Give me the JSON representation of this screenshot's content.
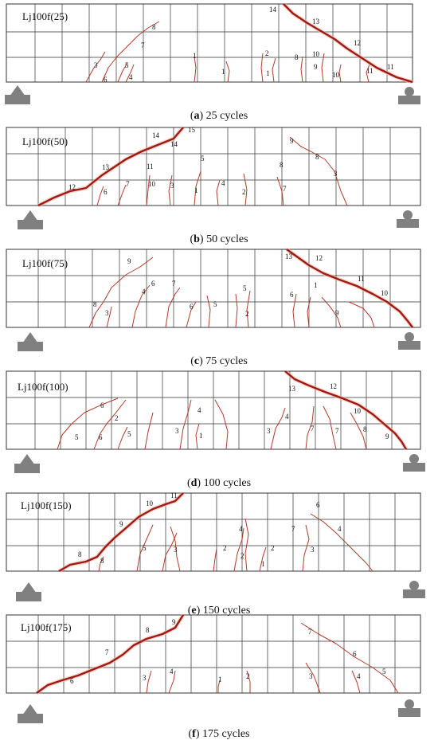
{
  "panels": [
    {
      "id": "a",
      "specimen": "Lj100f(25)",
      "caption_letter": "a",
      "caption_text": " 25 cycles",
      "crack_numbers": [
        "14",
        "13",
        "12",
        "11",
        "11",
        "10",
        "10",
        "9",
        "8",
        "8",
        "7",
        "5",
        "4",
        "3",
        "6",
        "2",
        "1",
        "1",
        "1"
      ]
    },
    {
      "id": "b",
      "specimen": "Lj100f(50)",
      "caption_letter": "b",
      "caption_text": " 50 cycles",
      "crack_numbers": [
        "15",
        "14",
        "14",
        "13",
        "12",
        "11",
        "10",
        "7",
        "6",
        "5",
        "3",
        "1",
        "4",
        "2",
        "9",
        "8",
        "3",
        "8",
        "7"
      ]
    },
    {
      "id": "c",
      "specimen": "Lj100f(75)",
      "caption_letter": "c",
      "caption_text": " 75 cycles",
      "crack_numbers": [
        "13",
        "12",
        "11",
        "10",
        "9",
        "9",
        "8",
        "7",
        "6",
        "4",
        "3",
        "6",
        "5",
        "5",
        "2",
        "1",
        "6"
      ]
    },
    {
      "id": "d",
      "specimen": "Lj100f(100)",
      "caption_letter": "d",
      "caption_text": " 100 cycles",
      "crack_numbers": [
        "13",
        "12",
        "10",
        "9",
        "8",
        "7",
        "7",
        "6",
        "6",
        "5",
        "5",
        "4",
        "4",
        "3",
        "3",
        "2",
        "1"
      ]
    },
    {
      "id": "e",
      "specimen": "Lj100f(150)",
      "caption_letter": "e",
      "caption_text": " 150 cycles",
      "crack_numbers": [
        "11",
        "10",
        "9",
        "8",
        "8",
        "7",
        "6",
        "5",
        "4",
        "4",
        "3",
        "3",
        "2",
        "2",
        "2",
        "1"
      ]
    },
    {
      "id": "f",
      "specimen": "Lj100f(175)",
      "caption_letter": "f",
      "caption_text": " 175 cycles",
      "crack_numbers": [
        "9",
        "8",
        "7",
        "7",
        "6",
        "6",
        "5",
        "4",
        "4",
        "3",
        "3",
        "2",
        "1"
      ]
    }
  ],
  "colors": {
    "grid": "#333333",
    "crack": "#b23a2a",
    "main_crack": "#9e1b10",
    "support": "#808080"
  }
}
